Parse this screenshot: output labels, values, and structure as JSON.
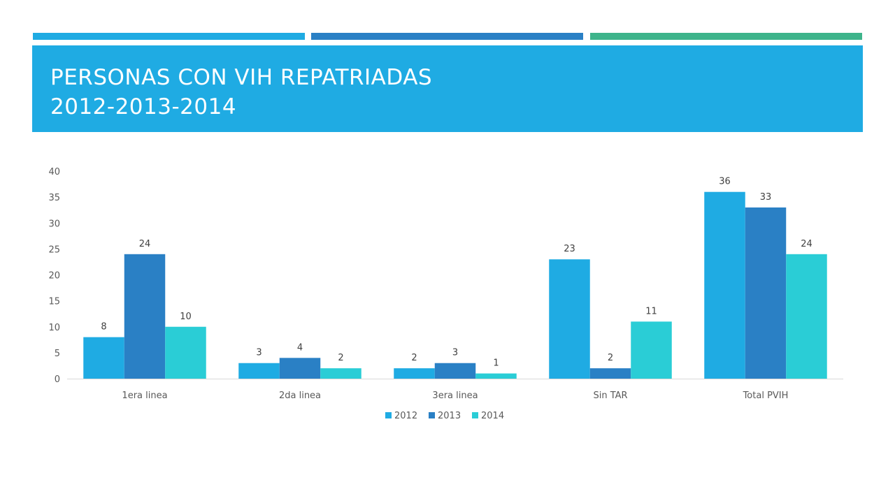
{
  "slide": {
    "title_line1": "PERSONAS CON VIH REPATRIADAS",
    "title_line2": "2012-2013-2014",
    "accent_colors": [
      "#1FABE3",
      "#2A80C5",
      "#3EB48B"
    ],
    "title_band_color": "#1FABE3"
  },
  "chart_data": {
    "type": "bar",
    "categories": [
      "1era linea",
      "2da linea",
      "3era linea",
      "Sin TAR",
      "Total PVIH"
    ],
    "series": [
      {
        "name": "2012",
        "color": "#1FABE3",
        "values": [
          8,
          3,
          2,
          23,
          36
        ]
      },
      {
        "name": "2013",
        "color": "#2A80C5",
        "values": [
          24,
          4,
          3,
          2,
          33
        ]
      },
      {
        "name": "2014",
        "color": "#2ACDD6",
        "values": [
          10,
          2,
          1,
          11,
          24
        ]
      }
    ],
    "title": "",
    "xlabel": "",
    "ylabel": "",
    "ylim": [
      0,
      40
    ],
    "yticks": [
      0,
      5,
      10,
      15,
      20,
      25,
      30,
      35,
      40
    ],
    "grid": false,
    "data_labels": true,
    "legend_position": "bottom"
  }
}
